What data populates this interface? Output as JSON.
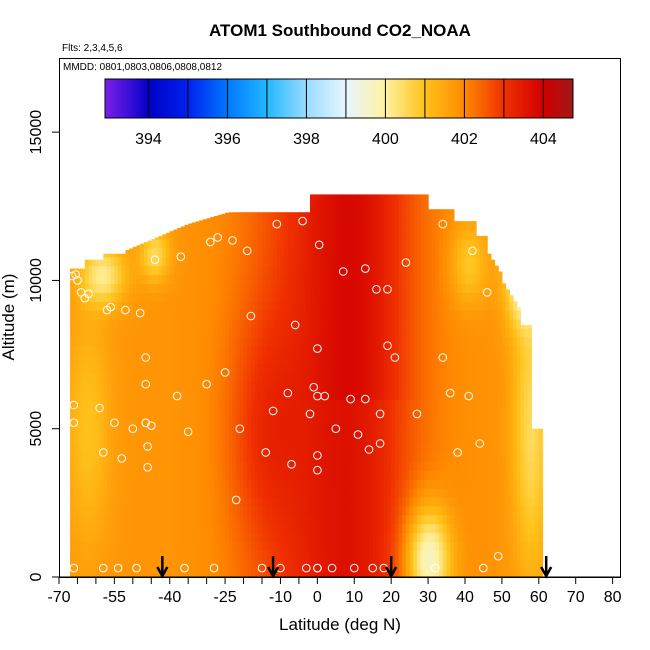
{
  "chart_data": {
    "type": "heatmap",
    "title": "ATOM1 Southbound CO2_NOAA",
    "subtitle_flights": "Flts: 2,3,4,5,6",
    "subtitle_dates": "MMDD: 0801,0803,0806,0808,0812",
    "xlabel": "Latitude (deg N)",
    "ylabel": "Altitude (m)",
    "xlim": [
      -70,
      82
    ],
    "ylim": [
      0,
      17500
    ],
    "x_ticks": [
      -70,
      -55,
      -40,
      -25,
      -10,
      0,
      10,
      20,
      30,
      40,
      50,
      60,
      70,
      80
    ],
    "x_tick_labels": [
      "-70",
      "-55",
      "-40",
      "-25",
      "-10",
      "0",
      "10",
      "20",
      "30",
      "40",
      "50",
      "60",
      "70",
      "80"
    ],
    "x_minor_ticks": [
      -65,
      -60,
      -50,
      -45,
      -35,
      -30,
      -20,
      -15,
      -5
    ],
    "y_ticks": [
      0,
      5000,
      10000,
      15000
    ],
    "y_tick_labels": [
      "0",
      "5000",
      "10000",
      "15000"
    ],
    "colorbar": {
      "min": 392.9,
      "max": 404.75,
      "ticks": [
        394,
        396,
        398,
        400,
        402,
        404
      ],
      "tick_labels": [
        "394",
        "396",
        "398",
        "400",
        "402",
        "404"
      ],
      "stops": [
        {
          "value": 392.9,
          "color": "#7a1fe6"
        },
        {
          "value": 393.5,
          "color": "#3d0fd9"
        },
        {
          "value": 394.0,
          "color": "#0000c8"
        },
        {
          "value": 395.0,
          "color": "#0022ee"
        },
        {
          "value": 396.0,
          "color": "#0077ff"
        },
        {
          "value": 397.0,
          "color": "#22b8ff"
        },
        {
          "value": 398.0,
          "color": "#99dcff"
        },
        {
          "value": 399.0,
          "color": "#e8f6ff"
        },
        {
          "value": 400.0,
          "color": "#fff2a0"
        },
        {
          "value": 401.0,
          "color": "#ffc21a"
        },
        {
          "value": 402.0,
          "color": "#ff8a00"
        },
        {
          "value": 403.0,
          "color": "#f03000"
        },
        {
          "value": 404.0,
          "color": "#d20000"
        },
        {
          "value": 404.75,
          "color": "#a01818"
        }
      ]
    },
    "arrow_latitudes": [
      -42,
      -12,
      20,
      62
    ],
    "observations": [
      [
        -66.5,
        10150
      ],
      [
        -66,
        5800
      ],
      [
        -66,
        5200
      ],
      [
        -66,
        300
      ],
      [
        -65.5,
        10200
      ],
      [
        -65,
        10000
      ],
      [
        -64,
        9600
      ],
      [
        -63,
        9400
      ],
      [
        -62,
        9550
      ],
      [
        -59,
        5700
      ],
      [
        -58,
        4200
      ],
      [
        -58,
        300
      ],
      [
        -57,
        9000
      ],
      [
        -56,
        9100
      ],
      [
        -55,
        5200
      ],
      [
        -54,
        300
      ],
      [
        -53,
        4000
      ],
      [
        -52,
        9000
      ],
      [
        -50,
        5000
      ],
      [
        -49,
        300
      ],
      [
        -48,
        8900
      ],
      [
        -47,
        11600
      ],
      [
        -46.5,
        7400
      ],
      [
        -46.5,
        6500
      ],
      [
        -46.5,
        5200
      ],
      [
        -46,
        4400
      ],
      [
        -46,
        3700
      ],
      [
        -45,
        5100
      ],
      [
        -44,
        10700
      ],
      [
        -38,
        6100
      ],
      [
        -37,
        10800
      ],
      [
        -36,
        300
      ],
      [
        -35,
        4900
      ],
      [
        -30,
        6500
      ],
      [
        -29,
        11300
      ],
      [
        -28,
        300
      ],
      [
        -27,
        11450
      ],
      [
        -25,
        6900
      ],
      [
        -23,
        11350
      ],
      [
        -22,
        2600
      ],
      [
        -21,
        5000
      ],
      [
        -19,
        11000
      ],
      [
        -18,
        8800
      ],
      [
        -15,
        300
      ],
      [
        -14,
        4200
      ],
      [
        -12,
        5600
      ],
      [
        -11,
        11900
      ],
      [
        -10,
        300
      ],
      [
        -8,
        6200
      ],
      [
        -7,
        3800
      ],
      [
        -6,
        8500
      ],
      [
        -4,
        12000
      ],
      [
        -3,
        300
      ],
      [
        -2,
        5500
      ],
      [
        -1,
        6400
      ],
      [
        0,
        300
      ],
      [
        0,
        7700
      ],
      [
        0,
        6100
      ],
      [
        0,
        4100
      ],
      [
        0,
        3600
      ],
      [
        0,
        300
      ],
      [
        0.5,
        11200
      ],
      [
        2,
        6100
      ],
      [
        4,
        300
      ],
      [
        5,
        5000
      ],
      [
        7,
        10300
      ],
      [
        9,
        6000
      ],
      [
        10,
        300
      ],
      [
        11,
        4800
      ],
      [
        13,
        10400
      ],
      [
        13,
        6000
      ],
      [
        14,
        4300
      ],
      [
        15,
        300
      ],
      [
        16,
        9700
      ],
      [
        17,
        5500
      ],
      [
        17,
        4500
      ],
      [
        18,
        300
      ],
      [
        19,
        7800
      ],
      [
        19,
        9700
      ],
      [
        21,
        7400
      ],
      [
        24,
        10600
      ],
      [
        26,
        13100
      ],
      [
        27,
        5500
      ],
      [
        32,
        300
      ],
      [
        34,
        7400
      ],
      [
        34,
        11900
      ],
      [
        36,
        6200
      ],
      [
        38,
        4200
      ],
      [
        41,
        6100
      ],
      [
        42,
        11000
      ],
      [
        44,
        4500
      ],
      [
        45,
        300
      ],
      [
        46,
        9600
      ],
      [
        49,
        700
      ],
      [
        60,
        9400
      ]
    ]
  }
}
